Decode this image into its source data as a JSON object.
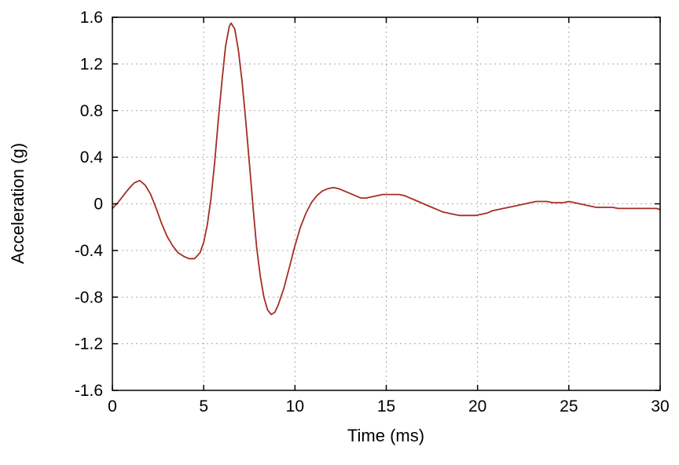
{
  "chart_data": {
    "type": "line",
    "title": "",
    "xlabel": "Time (ms)",
    "ylabel": "Acceleration (g)",
    "xlim": [
      0,
      30
    ],
    "ylim": [
      -1.6,
      1.6
    ],
    "xticks": [
      0,
      5,
      10,
      15,
      20,
      25,
      30
    ],
    "yticks": [
      -1.6,
      -1.2,
      -0.8,
      -0.4,
      0,
      0.4,
      0.8,
      1.2,
      1.6
    ],
    "grid": true,
    "grid_style": "dashed",
    "grid_color": "#aaaaaa",
    "frame_color": "#000000",
    "legend": "none",
    "series": [
      {
        "name": "acceleration",
        "color": "#a42e24",
        "points": [
          [
            0,
            -0.04
          ],
          [
            0.3,
            0.01
          ],
          [
            0.6,
            0.07
          ],
          [
            0.9,
            0.13
          ],
          [
            1.2,
            0.18
          ],
          [
            1.5,
            0.2
          ],
          [
            1.8,
            0.16
          ],
          [
            2.1,
            0.08
          ],
          [
            2.4,
            -0.04
          ],
          [
            2.7,
            -0.17
          ],
          [
            3,
            -0.28
          ],
          [
            3.3,
            -0.36
          ],
          [
            3.6,
            -0.42
          ],
          [
            3.9,
            -0.45
          ],
          [
            4.2,
            -0.47
          ],
          [
            4.5,
            -0.47
          ],
          [
            4.8,
            -0.42
          ],
          [
            5,
            -0.33
          ],
          [
            5.2,
            -0.18
          ],
          [
            5.4,
            0.05
          ],
          [
            5.6,
            0.35
          ],
          [
            5.8,
            0.72
          ],
          [
            6,
            1.05
          ],
          [
            6.2,
            1.35
          ],
          [
            6.4,
            1.52
          ],
          [
            6.5,
            1.55
          ],
          [
            6.7,
            1.5
          ],
          [
            6.9,
            1.32
          ],
          [
            7.1,
            1.05
          ],
          [
            7.3,
            0.72
          ],
          [
            7.5,
            0.35
          ],
          [
            7.7,
            -0.02
          ],
          [
            7.9,
            -0.37
          ],
          [
            8.1,
            -0.62
          ],
          [
            8.3,
            -0.8
          ],
          [
            8.5,
            -0.91
          ],
          [
            8.7,
            -0.95
          ],
          [
            8.9,
            -0.93
          ],
          [
            9.1,
            -0.86
          ],
          [
            9.4,
            -0.72
          ],
          [
            9.7,
            -0.54
          ],
          [
            10,
            -0.36
          ],
          [
            10.3,
            -0.2
          ],
          [
            10.6,
            -0.08
          ],
          [
            10.9,
            0.01
          ],
          [
            11.2,
            0.07
          ],
          [
            11.5,
            0.11
          ],
          [
            11.8,
            0.13
          ],
          [
            12.1,
            0.14
          ],
          [
            12.4,
            0.13
          ],
          [
            12.7,
            0.11
          ],
          [
            13,
            0.09
          ],
          [
            13.3,
            0.07
          ],
          [
            13.6,
            0.05
          ],
          [
            13.9,
            0.05
          ],
          [
            14.2,
            0.06
          ],
          [
            14.5,
            0.07
          ],
          [
            14.8,
            0.08
          ],
          [
            15.1,
            0.08
          ],
          [
            15.4,
            0.08
          ],
          [
            15.7,
            0.08
          ],
          [
            16,
            0.07
          ],
          [
            16.3,
            0.05
          ],
          [
            16.6,
            0.03
          ],
          [
            16.9,
            0.01
          ],
          [
            17.2,
            -0.01
          ],
          [
            17.5,
            -0.03
          ],
          [
            17.8,
            -0.05
          ],
          [
            18.1,
            -0.07
          ],
          [
            18.4,
            -0.08
          ],
          [
            18.7,
            -0.09
          ],
          [
            19,
            -0.1
          ],
          [
            19.3,
            -0.1
          ],
          [
            19.6,
            -0.1
          ],
          [
            19.9,
            -0.1
          ],
          [
            20.2,
            -0.09
          ],
          [
            20.5,
            -0.08
          ],
          [
            20.8,
            -0.06
          ],
          [
            21.1,
            -0.05
          ],
          [
            21.4,
            -0.04
          ],
          [
            21.7,
            -0.03
          ],
          [
            22,
            -0.02
          ],
          [
            22.3,
            -0.01
          ],
          [
            22.6,
            0
          ],
          [
            22.9,
            0.01
          ],
          [
            23.2,
            0.02
          ],
          [
            23.5,
            0.02
          ],
          [
            23.8,
            0.02
          ],
          [
            24.1,
            0.01
          ],
          [
            24.4,
            0.01
          ],
          [
            24.7,
            0.01
          ],
          [
            25,
            0.02
          ],
          [
            25.3,
            0.01
          ],
          [
            25.6,
            0
          ],
          [
            25.9,
            -0.01
          ],
          [
            26.2,
            -0.02
          ],
          [
            26.5,
            -0.03
          ],
          [
            26.8,
            -0.03
          ],
          [
            27.1,
            -0.03
          ],
          [
            27.4,
            -0.03
          ],
          [
            27.7,
            -0.04
          ],
          [
            28,
            -0.04
          ],
          [
            28.3,
            -0.04
          ],
          [
            28.6,
            -0.04
          ],
          [
            28.9,
            -0.04
          ],
          [
            29.2,
            -0.04
          ],
          [
            29.5,
            -0.04
          ],
          [
            29.8,
            -0.04
          ],
          [
            30,
            -0.05
          ]
        ]
      }
    ]
  }
}
